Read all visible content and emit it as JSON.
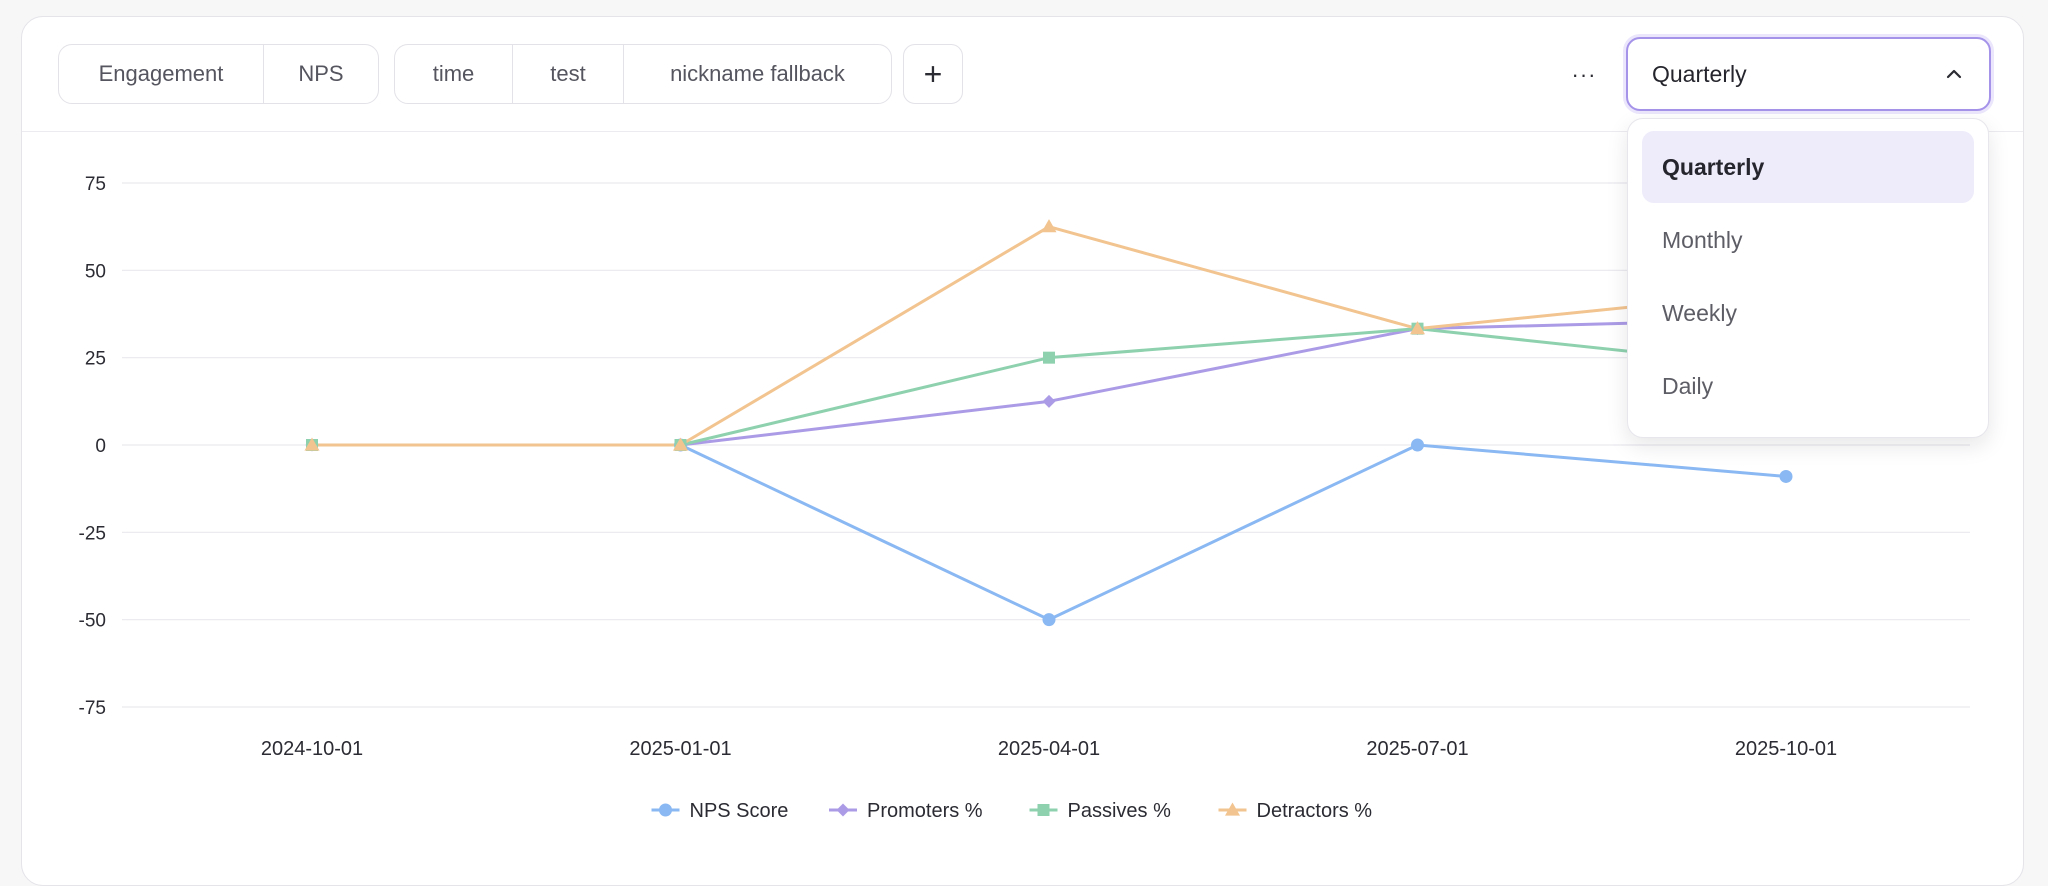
{
  "tabs_left": [
    {
      "label": "Engagement",
      "active": false
    },
    {
      "label": "NPS",
      "active": true
    }
  ],
  "tabs_right": [
    {
      "label": "time",
      "active": true
    },
    {
      "label": "test",
      "active": false
    },
    {
      "label": "nickname fallback",
      "active": false
    }
  ],
  "add_button": {
    "label": "+"
  },
  "more_button": {
    "label": "···"
  },
  "period_select": {
    "value": "Quarterly",
    "options": [
      "Quarterly",
      "Monthly",
      "Weekly",
      "Daily"
    ],
    "selected_index": 0,
    "open": true
  },
  "chart_data": {
    "type": "line",
    "x": [
      "2024-10-01",
      "2025-01-01",
      "2025-04-01",
      "2025-07-01",
      "2025-10-01"
    ],
    "ylim": [
      -75,
      75
    ],
    "yticks": [
      75,
      50,
      25,
      0,
      -25,
      -50,
      -75
    ],
    "grid": true,
    "legend_position": "bottom",
    "series": [
      {
        "name": "NPS Score",
        "color": "#8ab8f2",
        "marker": "circle",
        "values": [
          null,
          0,
          -50,
          0,
          -9
        ]
      },
      {
        "name": "Promoters %",
        "color": "#ab9be6",
        "marker": "diamond",
        "values": [
          0,
          0,
          12.5,
          33.3,
          36
        ]
      },
      {
        "name": "Passives %",
        "color": "#8ed1ae",
        "marker": "square",
        "values": [
          0,
          0,
          25,
          33.3,
          22
        ]
      },
      {
        "name": "Detractors %",
        "color": "#f2c48f",
        "marker": "triangle",
        "values": [
          0,
          0,
          62.5,
          33.3,
          44
        ]
      }
    ]
  }
}
